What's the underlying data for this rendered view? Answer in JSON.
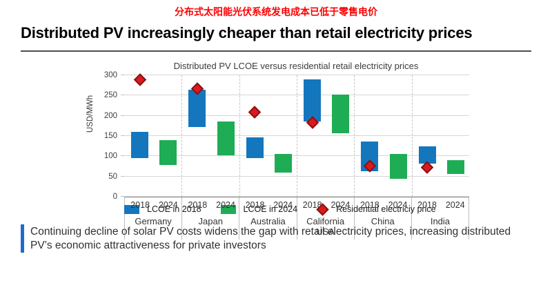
{
  "page": {
    "chinese_title": "分布式太阳能光伏系统发电成本已低于零售电价",
    "heading": "Distributed PV increasingly cheaper than retail electricity prices",
    "footer_note": "Continuing decline of solar PV costs widens the gap with retail electricity prices, increasing distributed PV’s economic attractiveness for private investors"
  },
  "colors": {
    "cn_title": "#ff0000",
    "lcoe_2018": "#1476bd",
    "lcoe_2024": "#1ead54",
    "price_marker": "#da1a1c",
    "price_marker_border": "#8c1010",
    "footer_accent": "#1e6bd0"
  },
  "chart_data": {
    "type": "bar",
    "subtype": "floating-range-bars-with-markers",
    "title": "Distributed PV LCOE versus residential retail electricity prices",
    "ylabel": "USD/MWh",
    "xlabel": "",
    "ylim": [
      0,
      300
    ],
    "yticks": [
      0,
      50,
      100,
      150,
      200,
      250,
      300
    ],
    "grid": true,
    "legend_position": "bottom",
    "categories": [
      "Germany",
      "Japan",
      "Australia",
      "California USA",
      "China",
      "India"
    ],
    "x_sub_labels": [
      "2018",
      "2024"
    ],
    "series": [
      {
        "name": "LCOE in 2018",
        "color": "#1476bd",
        "ranges": [
          [
            95,
            160
          ],
          [
            172,
            265
          ],
          [
            95,
            147
          ],
          [
            186,
            290
          ],
          [
            63,
            136
          ],
          [
            82,
            125
          ]
        ]
      },
      {
        "name": "LCOE in 2024",
        "color": "#1ead54",
        "ranges": [
          [
            78,
            140
          ],
          [
            102,
            186
          ],
          [
            60,
            105
          ],
          [
            157,
            252
          ],
          [
            44,
            105
          ],
          [
            56,
            91
          ]
        ]
      },
      {
        "name": "Residential electriciy price",
        "color": "#da1a1c",
        "marker": "diamond",
        "values": [
          290,
          268,
          210,
          184,
          76,
          73
        ]
      }
    ]
  }
}
